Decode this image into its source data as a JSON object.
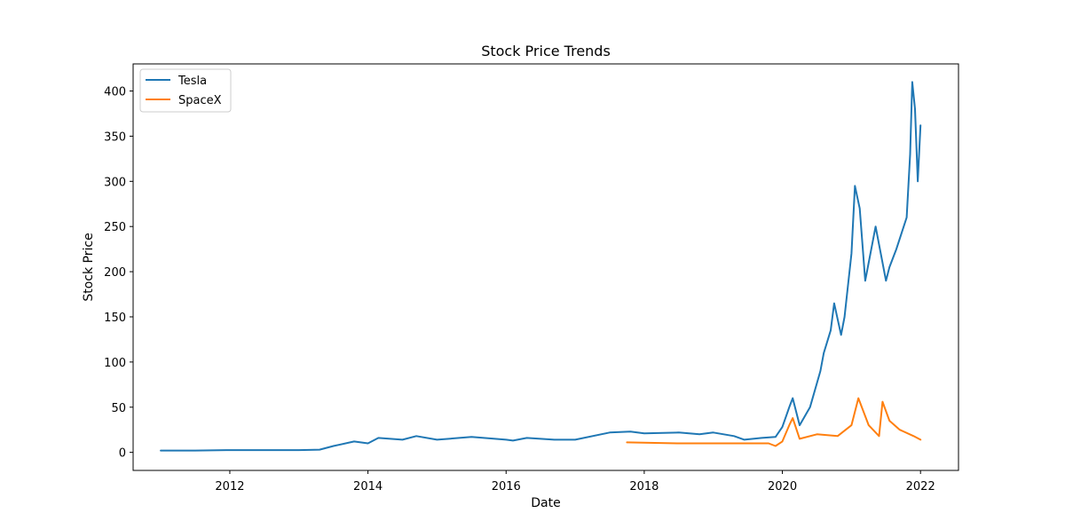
{
  "chart_data": {
    "type": "line",
    "title": "Stock Price Trends",
    "xlabel": "Date",
    "ylabel": "Stock Price",
    "xlim": [
      2010.6,
      2022.55
    ],
    "ylim": [
      -20,
      430
    ],
    "x_ticks": [
      {
        "value": 2012,
        "label": "2012"
      },
      {
        "value": 2014,
        "label": "2014"
      },
      {
        "value": 2016,
        "label": "2016"
      },
      {
        "value": 2018,
        "label": "2018"
      },
      {
        "value": 2020,
        "label": "2020"
      },
      {
        "value": 2022,
        "label": "2022"
      }
    ],
    "y_ticks": [
      {
        "value": 0,
        "label": "0"
      },
      {
        "value": 50,
        "label": "50"
      },
      {
        "value": 100,
        "label": "100"
      },
      {
        "value": 150,
        "label": "150"
      },
      {
        "value": 200,
        "label": "200"
      },
      {
        "value": 250,
        "label": "250"
      },
      {
        "value": 300,
        "label": "300"
      },
      {
        "value": 350,
        "label": "350"
      },
      {
        "value": 400,
        "label": "400"
      }
    ],
    "grid": false,
    "legend": {
      "placement": "top-left"
    },
    "series": [
      {
        "name": "Tesla",
        "color": "#1f77b4",
        "x": [
          2011.0,
          2011.5,
          2012.0,
          2012.5,
          2013.0,
          2013.3,
          2013.5,
          2013.8,
          2014.0,
          2014.15,
          2014.5,
          2014.7,
          2015.0,
          2015.5,
          2016.0,
          2016.1,
          2016.3,
          2016.7,
          2017.0,
          2017.5,
          2017.8,
          2018.0,
          2018.5,
          2018.8,
          2019.0,
          2019.3,
          2019.45,
          2019.7,
          2019.9,
          2020.0,
          2020.1,
          2020.15,
          2020.25,
          2020.4,
          2020.55,
          2020.6,
          2020.7,
          2020.75,
          2020.85,
          2020.9,
          2021.0,
          2021.05,
          2021.12,
          2021.2,
          2021.35,
          2021.5,
          2021.55,
          2021.65,
          2021.8,
          2021.85,
          2021.88,
          2021.92,
          2021.96,
          2022.0
        ],
        "y": [
          2,
          2,
          2.5,
          2.5,
          2.5,
          3,
          7,
          12,
          10,
          16,
          14,
          18,
          14,
          17,
          14,
          13,
          16,
          14,
          14,
          22,
          23,
          21,
          22,
          20,
          22,
          18,
          14,
          16,
          17,
          28,
          50,
          60,
          30,
          50,
          90,
          110,
          135,
          165,
          130,
          150,
          220,
          295,
          270,
          190,
          250,
          190,
          205,
          225,
          260,
          330,
          410,
          380,
          300,
          362
        ]
      },
      {
        "name": "SpaceX",
        "color": "#ff7f0e",
        "x": [
          2017.75,
          2018.5,
          2019.5,
          2019.8,
          2019.9,
          2020.0,
          2020.1,
          2020.15,
          2020.25,
          2020.5,
          2020.8,
          2021.0,
          2021.1,
          2021.25,
          2021.4,
          2021.45,
          2021.55,
          2021.7,
          2021.9,
          2022.0
        ],
        "y": [
          11,
          10,
          10,
          10,
          7,
          12,
          30,
          38,
          15,
          20,
          18,
          30,
          60,
          30,
          18,
          56,
          35,
          25,
          18,
          14
        ]
      }
    ]
  }
}
